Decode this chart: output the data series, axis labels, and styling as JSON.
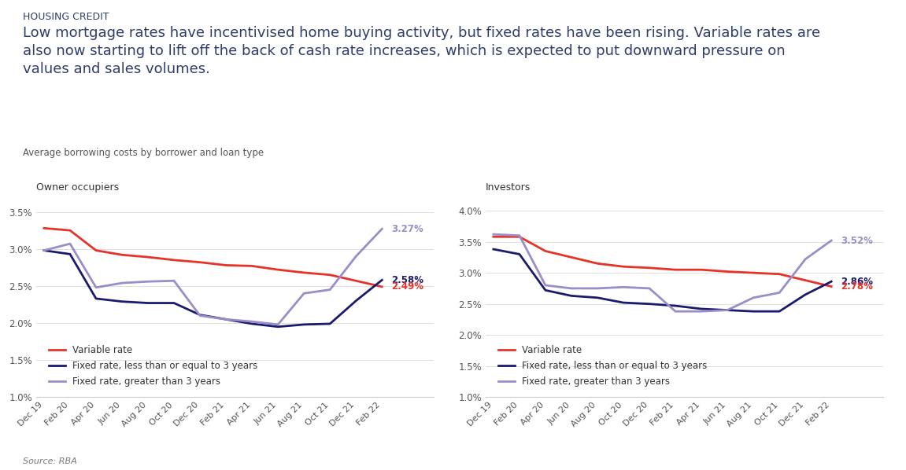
{
  "title_small": "HOUSING CREDIT",
  "title_large": "Low mortgage rates have incentivised home buying activity, but fixed rates have been rising. Variable rates are\nalso now starting to lift off the back of cash rate increases, which is expected to put downward pressure on\nvalues and sales volumes.",
  "subtitle": "Average borrowing costs by borrower and loan type",
  "source": "Source: RBA",
  "left_panel_title": "Owner occupiers",
  "right_panel_title": "Investors",
  "x_labels": [
    "Dec 19",
    "Feb 20",
    "Apr 20",
    "Jun 20",
    "Aug 20",
    "Oct 20",
    "Dec 20",
    "Feb 21",
    "Apr 21",
    "Jun 21",
    "Aug 21",
    "Oct 21",
    "Dec 21",
    "Feb 22"
  ],
  "left": {
    "variable": [
      3.28,
      3.25,
      2.98,
      2.92,
      2.89,
      2.85,
      2.82,
      2.78,
      2.77,
      2.72,
      2.68,
      2.65,
      2.57,
      2.49
    ],
    "fixed_short": [
      2.98,
      2.93,
      2.33,
      2.29,
      2.27,
      2.27,
      2.11,
      2.05,
      1.99,
      1.95,
      1.98,
      1.99,
      2.3,
      2.58
    ],
    "fixed_long": [
      2.98,
      3.07,
      2.48,
      2.54,
      2.56,
      2.57,
      2.1,
      2.05,
      2.02,
      1.98,
      2.4,
      2.45,
      2.9,
      3.27
    ],
    "end_labels": {
      "variable": "2.49%",
      "fixed_short": "2.58%",
      "fixed_long": "3.27%"
    }
  },
  "right": {
    "variable": [
      3.58,
      3.58,
      3.35,
      3.25,
      3.15,
      3.1,
      3.08,
      3.05,
      3.05,
      3.02,
      3.0,
      2.98,
      2.88,
      2.78
    ],
    "fixed_short": [
      3.38,
      3.3,
      2.72,
      2.63,
      2.6,
      2.52,
      2.5,
      2.47,
      2.42,
      2.4,
      2.38,
      2.38,
      2.65,
      2.86
    ],
    "fixed_long": [
      3.62,
      3.6,
      2.8,
      2.75,
      2.75,
      2.77,
      2.75,
      2.38,
      2.38,
      2.4,
      2.6,
      2.68,
      3.22,
      3.52
    ],
    "end_labels": {
      "variable": "2.78%",
      "fixed_short": "2.86%",
      "fixed_long": "3.52%"
    }
  },
  "colors": {
    "variable": "#e63329",
    "fixed_short": "#1a1a6e",
    "fixed_long": "#9b8dc8"
  },
  "ylim_left": [
    1.0,
    3.6
  ],
  "ylim_right": [
    1.0,
    4.1
  ],
  "yticks_left": [
    1.0,
    1.5,
    2.0,
    2.5,
    3.0,
    3.5
  ],
  "yticks_right": [
    1.0,
    1.5,
    2.0,
    2.5,
    3.0,
    3.5,
    4.0
  ],
  "background_color": "#ffffff",
  "panel_bg": "#ffffff",
  "text_color_dark": "#2e3d6b",
  "text_color_title": "#3a3a5c",
  "grid_color": "#e0e0e0"
}
